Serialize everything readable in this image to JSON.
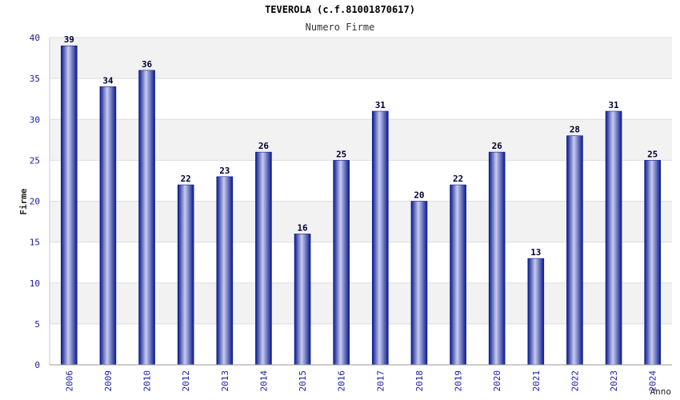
{
  "chart_data": {
    "type": "bar",
    "title": "TEVEROLA (c.f.81001870617)",
    "subtitle": "Numero Firme",
    "xlabel": "Anno",
    "ylabel": "Firme",
    "categories": [
      "2006",
      "2009",
      "2010",
      "2012",
      "2013",
      "2014",
      "2015",
      "2016",
      "2017",
      "2018",
      "2019",
      "2020",
      "2021",
      "2022",
      "2023",
      "2024"
    ],
    "values": [
      39,
      34,
      36,
      22,
      23,
      26,
      16,
      25,
      31,
      20,
      22,
      26,
      13,
      28,
      31,
      25
    ],
    "ylim": [
      0,
      40
    ],
    "yticks": [
      0,
      5,
      10,
      15,
      20,
      25,
      30,
      35,
      40
    ],
    "grid": true,
    "legend": "none",
    "colors": {
      "bar_dark": "#0a1a8c",
      "bar_light": "#c8ccf0",
      "tick_label": "#1a1aa6",
      "band": "#f2f2f2",
      "grid": "#dddddd"
    }
  }
}
